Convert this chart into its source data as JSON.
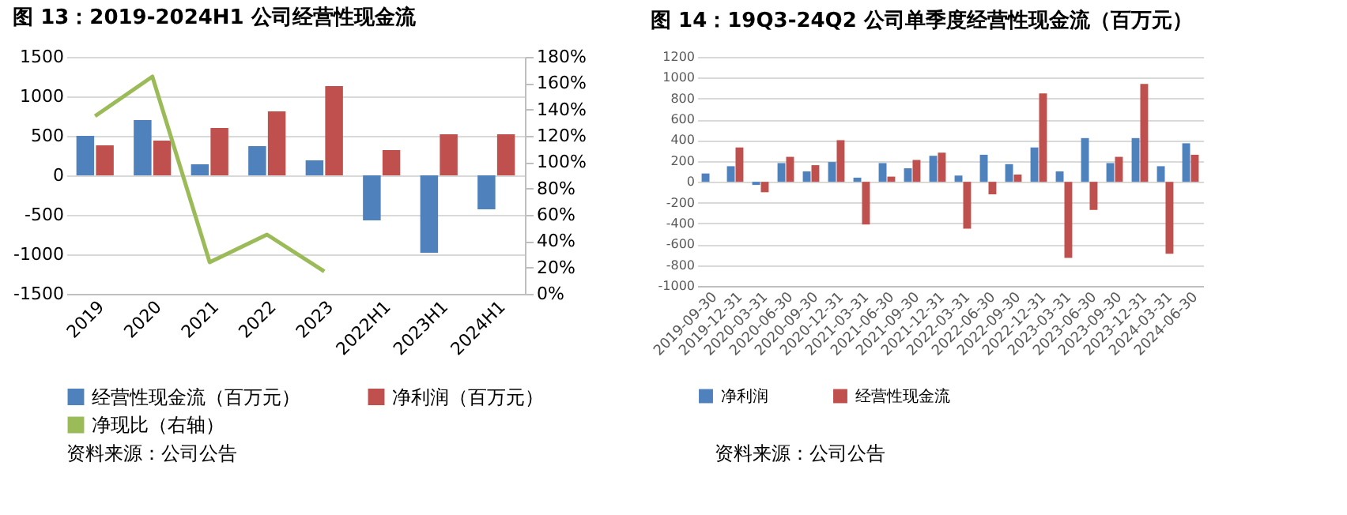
{
  "chart_data": [
    {
      "type": "bar",
      "title": "图 13：2019-2024H1 公司经营性现金流",
      "categories": [
        "2019",
        "2020",
        "2021",
        "2022",
        "2023",
        "2022H1",
        "2023H1",
        "2024H1"
      ],
      "series": [
        {
          "name": "经营性现金流（百万元）",
          "color": "#4f81bd",
          "values": [
            500,
            700,
            140,
            370,
            190,
            -570,
            -980,
            -430
          ]
        },
        {
          "name": "净利润（百万元）",
          "color": "#c0504d",
          "values": [
            380,
            440,
            600,
            810,
            1130,
            320,
            520,
            520
          ]
        },
        {
          "name": "净现比（右轴）",
          "type": "line",
          "axis": "y2",
          "color": "#9bbb59",
          "values": [
            135,
            165,
            24,
            45,
            17,
            null,
            null,
            null
          ]
        }
      ],
      "ylim": [
        -1500,
        1500
      ],
      "yticks": [
        -1500,
        -1000,
        -500,
        0,
        500,
        1000,
        1500
      ],
      "y2lim": [
        0,
        180
      ],
      "y2ticks": [
        {
          "value": 0,
          "label": "0%"
        },
        {
          "value": 20,
          "label": "20%"
        },
        {
          "value": 40,
          "label": "40%"
        },
        {
          "value": 60,
          "label": "60%"
        },
        {
          "value": 80,
          "label": "80%"
        },
        {
          "value": 100,
          "label": "100%"
        },
        {
          "value": 120,
          "label": "120%"
        },
        {
          "value": 140,
          "label": "140%"
        },
        {
          "value": 160,
          "label": "160%"
        },
        {
          "value": 180,
          "label": "180%"
        }
      ],
      "grid": "y",
      "legend": "bottom",
      "annotations": [
        "资料来源：公司公告"
      ]
    },
    {
      "type": "bar",
      "title": "图 14：19Q3-24Q2 公司单季度经营性现金流（百万元）",
      "categories": [
        "2019-09-30",
        "2019-12-31",
        "2020-03-31",
        "2020-06-30",
        "2020-09-30",
        "2020-12-31",
        "2021-03-31",
        "2021-06-30",
        "2021-09-30",
        "2021-12-31",
        "2022-03-31",
        "2022-06-30",
        "2022-09-30",
        "2022-12-31",
        "2023-03-31",
        "2023-06-30",
        "2023-09-30",
        "2023-12-31",
        "2024-03-31",
        "2024-06-30"
      ],
      "series": [
        {
          "name": "净利润",
          "color": "#4f81bd",
          "values": [
            80,
            150,
            -30,
            180,
            100,
            190,
            40,
            180,
            130,
            250,
            60,
            260,
            170,
            330,
            100,
            420,
            180,
            420,
            150,
            370
          ]
        },
        {
          "name": "经营性现金流",
          "color": "#c0504d",
          "values": [
            0,
            330,
            -100,
            240,
            160,
            400,
            -410,
            50,
            210,
            280,
            -450,
            -120,
            70,
            850,
            -730,
            -270,
            240,
            940,
            -690,
            260
          ]
        }
      ],
      "ylim": [
        -1000,
        1200
      ],
      "yticks": [
        -1000,
        -800,
        -600,
        -400,
        -200,
        0,
        200,
        400,
        600,
        800,
        1000,
        1200
      ],
      "grid": "y",
      "legend": "bottom",
      "annotations": [
        "资料来源：公司公告"
      ]
    }
  ]
}
